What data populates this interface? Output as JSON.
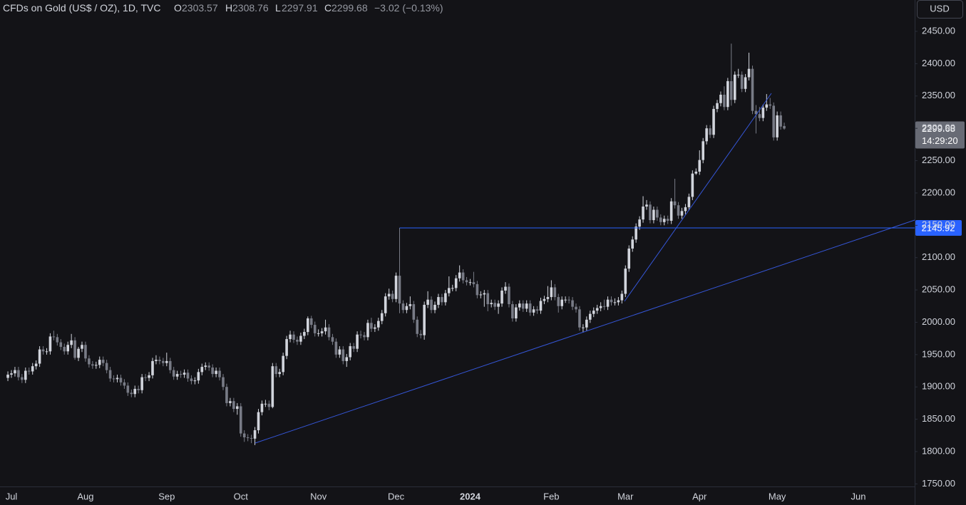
{
  "chart_data": {
    "type": "candlestick",
    "title": "CFDs on Gold (US$ / OZ), 1D, TVC",
    "ohlc_letters": [
      "O",
      "H",
      "L",
      "C"
    ],
    "change_label": "−3.02 (−0.13%)",
    "currency": "USD",
    "countdown": "14:29:20",
    "up_color": "#d1d4dc",
    "down_color": "#787b86",
    "level": 2145.92,
    "level_color": "#2962ff",
    "grid": false,
    "ylim": [
      1749.3,
      2498.5
    ],
    "yticks": [
      {
        "value": 1750,
        "label": "1750.00"
      },
      {
        "value": 1800,
        "label": "1800.00"
      },
      {
        "value": 1850,
        "label": "1850.00"
      },
      {
        "value": 1900,
        "label": "1900.00"
      },
      {
        "value": 1950,
        "label": "1950.00"
      },
      {
        "value": 2000,
        "label": "2000.00"
      },
      {
        "value": 2050,
        "label": "2050.00"
      },
      {
        "value": 2100,
        "label": "2100.00"
      },
      {
        "value": 2150,
        "label": "2150.00"
      },
      {
        "value": 2200,
        "label": "2200.00"
      },
      {
        "value": 2250,
        "label": "2250.00"
      },
      {
        "value": 2300,
        "label": "2300.00"
      },
      {
        "value": 2350,
        "label": "2350.00"
      },
      {
        "value": 2400,
        "label": "2400.00"
      },
      {
        "value": 2450,
        "label": "2450.00"
      }
    ],
    "categories": [
      null,
      "Jul",
      null,
      null,
      null,
      null,
      null,
      null,
      null,
      null,
      null,
      null,
      null,
      null,
      null,
      null,
      null,
      null,
      null,
      null,
      null,
      null,
      "Aug",
      null,
      null,
      null,
      null,
      null,
      null,
      null,
      null,
      null,
      null,
      null,
      null,
      null,
      null,
      null,
      null,
      null,
      null,
      null,
      null,
      null,
      null,
      "Sep",
      null,
      null,
      null,
      null,
      null,
      null,
      null,
      null,
      null,
      null,
      null,
      null,
      null,
      null,
      null,
      null,
      null,
      null,
      null,
      null,
      "Oct",
      null,
      null,
      null,
      null,
      null,
      null,
      null,
      null,
      null,
      null,
      null,
      null,
      null,
      null,
      null,
      null,
      null,
      null,
      null,
      null,
      null,
      "Nov",
      null,
      null,
      null,
      null,
      null,
      null,
      null,
      null,
      null,
      null,
      null,
      null,
      null,
      null,
      null,
      null,
      null,
      null,
      null,
      null,
      null,
      "Dec",
      null,
      null,
      null,
      null,
      null,
      null,
      null,
      null,
      null,
      null,
      null,
      null,
      null,
      null,
      null,
      null,
      null,
      null,
      null,
      null,
      "2024",
      null,
      null,
      null,
      null,
      null,
      null,
      null,
      null,
      null,
      null,
      null,
      null,
      null,
      null,
      null,
      null,
      null,
      null,
      null,
      null,
      null,
      null,
      "Feb",
      null,
      null,
      null,
      null,
      null,
      null,
      null,
      null,
      null,
      null,
      null,
      null,
      null,
      null,
      null,
      null,
      null,
      null,
      null,
      null,
      "Mar",
      null,
      null,
      null,
      null,
      null,
      null,
      null,
      null,
      null,
      null,
      null,
      null,
      null,
      null,
      null,
      null,
      null,
      null,
      null,
      null,
      "Apr",
      null,
      null,
      null,
      null,
      null,
      null,
      null,
      null,
      null,
      null,
      null,
      null,
      null,
      null,
      null,
      null,
      null,
      null,
      null,
      null,
      null,
      "May",
      null,
      null,
      null,
      null,
      null,
      null,
      null,
      null,
      null,
      null,
      null,
      null,
      null,
      null,
      null,
      null,
      null,
      null,
      null,
      null,
      null,
      null,
      "Jun"
    ],
    "open": [
      1914,
      1919,
      1921,
      1926,
      1915,
      1911,
      1925,
      1924,
      1932,
      1936,
      1958,
      1955,
      1955,
      1978,
      1977,
      1969,
      1962,
      1955,
      1965,
      1972,
      1945,
      1959,
      1965,
      1944,
      1935,
      1933,
      1934,
      1942,
      1937,
      1926,
      1913,
      1912,
      1914,
      1907,
      1902,
      1891,
      1889,
      1897,
      1895,
      1915,
      1914,
      1918,
      1940,
      1942,
      1940,
      1937,
      1940,
      1926,
      1916,
      1920,
      1919,
      1922,
      1913,
      1909,
      1910,
      1923,
      1931,
      1933,
      1930,
      1920,
      1925,
      1915,
      1900,
      1875,
      1878,
      1866,
      1870,
      1828,
      1822,
      1821,
      1820,
      1833,
      1861,
      1874,
      1874,
      1869,
      1932,
      1920,
      1923,
      1948,
      1974,
      1981,
      1973,
      1970,
      1979,
      1985,
      2006,
      1996,
      1983,
      1983,
      1986,
      1992,
      1977,
      1970,
      1950,
      1958,
      1940,
      1946,
      1963,
      1959,
      1981,
      1980,
      1977,
      1999,
      1990,
      1992,
      2002,
      2014,
      2040,
      2044,
      2036,
      2072,
      2029,
      2019,
      2025,
      2028,
      2004,
      1982,
      1980,
      2027,
      2035,
      2019,
      2027,
      2039,
      2031,
      2045,
      2053,
      2053,
      2068,
      2077,
      2065,
      2062,
      2062,
      2059,
      2042,
      2043,
      2045,
      2028,
      2030,
      2024,
      2029,
      2049,
      2055,
      2028,
      2006,
      2023,
      2029,
      2021,
      2029,
      2015,
      2020,
      2018,
      2033,
      2036,
      2039,
      2054,
      2039,
      2025,
      2035,
      2035,
      2034,
      2024,
      2020,
      1992,
      1992,
      2004,
      2013,
      2018,
      2022,
      2025,
      2024,
      2035,
      2031,
      2031,
      2034,
      2044,
      2083,
      2114,
      2128,
      2148,
      2159,
      2179,
      2182,
      2158,
      2174,
      2162,
      2155,
      2160,
      2157,
      2187,
      2181,
      2165,
      2172,
      2178,
      2194,
      2230,
      2233,
      2251,
      2280,
      2300,
      2290,
      2330,
      2339,
      2352,
      2333,
      2373,
      2344,
      2383,
      2383,
      2361,
      2379,
      2392,
      2327,
      2322,
      2316,
      2332,
      2337,
      2335,
      2286,
      2320,
      2303.57,
      null,
      null,
      null,
      null,
      null,
      null,
      null,
      null,
      null,
      null,
      null,
      null,
      null,
      null,
      null,
      null,
      null,
      null,
      null,
      null,
      null
    ],
    "high": [
      1924,
      1926,
      1931,
      1931,
      1920,
      1930,
      1930,
      1937,
      1941,
      1963,
      1963,
      1960,
      1983,
      1987,
      1982,
      1974,
      1967,
      1970,
      1982,
      1977,
      1962,
      1970,
      1970,
      1949,
      1940,
      1939,
      1947,
      1947,
      1942,
      1931,
      1918,
      1919,
      1919,
      1912,
      1907,
      1896,
      1902,
      1902,
      1920,
      1920,
      1923,
      1945,
      1949,
      1947,
      1945,
      1953,
      1945,
      1931,
      1925,
      1925,
      1927,
      1927,
      1918,
      1915,
      1928,
      1936,
      1938,
      1938,
      1935,
      1930,
      1930,
      1920,
      1905,
      1883,
      1883,
      1875,
      1875,
      1833,
      1827,
      1826,
      1838,
      1866,
      1879,
      1880,
      1879,
      1937,
      1937,
      1928,
      1953,
      1979,
      1987,
      1986,
      1978,
      1984,
      1990,
      2009,
      2010,
      2001,
      1989,
      1991,
      2004,
      1997,
      1982,
      1975,
      1963,
      1963,
      1951,
      1968,
      1968,
      1986,
      1987,
      1985,
      2004,
      2007,
      1997,
      2007,
      2019,
      2045,
      2052,
      2049,
      2077,
      2146,
      2034,
      2030,
      2040,
      2033,
      2009,
      1988,
      2032,
      2048,
      2040,
      2032,
      2044,
      2044,
      2050,
      2071,
      2058,
      2073,
      2088,
      2082,
      2070,
      2067,
      2078,
      2064,
      2048,
      2050,
      2050,
      2035,
      2035,
      2034,
      2054,
      2062,
      2060,
      2033,
      2028,
      2034,
      2034,
      2034,
      2034,
      2025,
      2025,
      2038,
      2041,
      2056,
      2065,
      2059,
      2044,
      2040,
      2040,
      2040,
      2039,
      2029,
      2025,
      1997,
      2009,
      2018,
      2023,
      2027,
      2031,
      2035,
      2040,
      2040,
      2037,
      2039,
      2049,
      2088,
      2119,
      2133,
      2153,
      2164,
      2195,
      2189,
      2187,
      2179,
      2179,
      2167,
      2165,
      2165,
      2192,
      2222,
      2186,
      2177,
      2183,
      2199,
      2235,
      2238,
      2266,
      2285,
      2305,
      2305,
      2335,
      2344,
      2357,
      2365,
      2378,
      2431,
      2388,
      2392,
      2388,
      2384,
      2417,
      2397,
      2336,
      2333,
      2337,
      2353,
      2347,
      2340,
      2326,
      2326,
      2308.76,
      null,
      null,
      null,
      null,
      null,
      null,
      null,
      null,
      null,
      null,
      null,
      null,
      null,
      null,
      null,
      null,
      null,
      null,
      null,
      null,
      null
    ],
    "low": [
      1909,
      1914,
      1916,
      1910,
      1906,
      1906,
      1919,
      1919,
      1927,
      1931,
      1950,
      1950,
      1950,
      1972,
      1964,
      1957,
      1950,
      1950,
      1960,
      1942,
      1940,
      1954,
      1939,
      1930,
      1928,
      1928,
      1929,
      1932,
      1921,
      1908,
      1907,
      1907,
      1902,
      1897,
      1886,
      1884,
      1884,
      1890,
      1890,
      1909,
      1909,
      1913,
      1935,
      1935,
      1932,
      1932,
      1921,
      1911,
      1911,
      1914,
      1914,
      1908,
      1904,
      1904,
      1905,
      1918,
      1926,
      1925,
      1915,
      1915,
      1910,
      1895,
      1870,
      1870,
      1861,
      1857,
      1823,
      1815,
      1816,
      1813,
      1810,
      1828,
      1856,
      1869,
      1864,
      1867,
      1915,
      1915,
      1918,
      1943,
      1969,
      1968,
      1965,
      1965,
      1974,
      1980,
      1991,
      1978,
      1978,
      1978,
      1981,
      1972,
      1965,
      1945,
      1945,
      1935,
      1931,
      1941,
      1954,
      1954,
      1975,
      1972,
      1972,
      1985,
      1985,
      1987,
      1997,
      2009,
      2035,
      2031,
      2031,
      2014,
      2014,
      2014,
      2020,
      1999,
      1977,
      1975,
      1973,
      2022,
      2014,
      2014,
      2022,
      2026,
      2026,
      2040,
      2048,
      2048,
      2063,
      2060,
      2057,
      2057,
      2054,
      2037,
      2037,
      2024,
      2017,
      2023,
      2019,
      2013,
      2024,
      2044,
      2023,
      2001,
      2001,
      2018,
      2016,
      2016,
      2010,
      2010,
      2013,
      2013,
      2028,
      2031,
      2034,
      2034,
      2015,
      2020,
      2030,
      2029,
      2019,
      2015,
      1987,
      1984,
      1987,
      1999,
      2008,
      2013,
      2017,
      2019,
      2019,
      2026,
      2026,
      2026,
      2029,
      2039,
      2078,
      2109,
      2123,
      2143,
      2154,
      2174,
      2153,
      2153,
      2157,
      2150,
      2150,
      2152,
      2152,
      2176,
      2160,
      2160,
      2167,
      2173,
      2189,
      2228,
      2228,
      2246,
      2275,
      2285,
      2285,
      2325,
      2334,
      2328,
      2328,
      2335,
      2339,
      2378,
      2356,
      2356,
      2374,
      2322,
      2292,
      2311,
      2311,
      2327,
      2330,
      2281,
      2281,
      2298,
      2297.91,
      null,
      null,
      null,
      null,
      null,
      null,
      null,
      null,
      null,
      null,
      null,
      null,
      null,
      null,
      null,
      null,
      null,
      null,
      null,
      null,
      null
    ],
    "close": [
      1919,
      1921,
      1926,
      1915,
      1911,
      1925,
      1924,
      1932,
      1936,
      1958,
      1955,
      1955,
      1978,
      1977,
      1969,
      1962,
      1955,
      1965,
      1972,
      1945,
      1959,
      1965,
      1944,
      1935,
      1933,
      1934,
      1942,
      1937,
      1926,
      1913,
      1912,
      1914,
      1907,
      1902,
      1891,
      1889,
      1897,
      1895,
      1915,
      1914,
      1918,
      1940,
      1942,
      1940,
      1937,
      1940,
      1926,
      1916,
      1920,
      1919,
      1922,
      1913,
      1909,
      1910,
      1923,
      1931,
      1933,
      1930,
      1920,
      1925,
      1915,
      1900,
      1875,
      1878,
      1866,
      1870,
      1828,
      1822,
      1821,
      1820,
      1833,
      1861,
      1874,
      1874,
      1869,
      1932,
      1920,
      1923,
      1948,
      1974,
      1981,
      1973,
      1970,
      1979,
      1985,
      2006,
      1996,
      1983,
      1983,
      1986,
      1992,
      1977,
      1970,
      1950,
      1958,
      1940,
      1946,
      1963,
      1959,
      1981,
      1980,
      1977,
      1999,
      1990,
      1992,
      2002,
      2014,
      2040,
      2044,
      2036,
      2072,
      2029,
      2019,
      2025,
      2028,
      2004,
      1982,
      1980,
      2027,
      2035,
      2019,
      2027,
      2039,
      2031,
      2045,
      2053,
      2053,
      2068,
      2077,
      2065,
      2062,
      2062,
      2059,
      2042,
      2043,
      2045,
      2028,
      2030,
      2024,
      2029,
      2049,
      2055,
      2028,
      2006,
      2023,
      2029,
      2021,
      2029,
      2015,
      2020,
      2018,
      2033,
      2036,
      2039,
      2054,
      2039,
      2025,
      2035,
      2035,
      2034,
      2024,
      2020,
      1992,
      1992,
      2004,
      2013,
      2018,
      2022,
      2025,
      2024,
      2035,
      2031,
      2031,
      2034,
      2044,
      2083,
      2114,
      2128,
      2148,
      2159,
      2179,
      2182,
      2158,
      2174,
      2162,
      2155,
      2160,
      2157,
      2187,
      2181,
      2165,
      2172,
      2178,
      2194,
      2230,
      2233,
      2251,
      2280,
      2300,
      2290,
      2330,
      2339,
      2352,
      2333,
      2373,
      2344,
      2383,
      2383,
      2361,
      2379,
      2392,
      2327,
      2322,
      2316,
      2332,
      2337,
      2335,
      2286,
      2320,
      2302.7,
      2299.68,
      null,
      null,
      null,
      null,
      null,
      null,
      null,
      null,
      null,
      null,
      null,
      null,
      null,
      null,
      null,
      null,
      null,
      null,
      null,
      null,
      null
    ]
  }
}
